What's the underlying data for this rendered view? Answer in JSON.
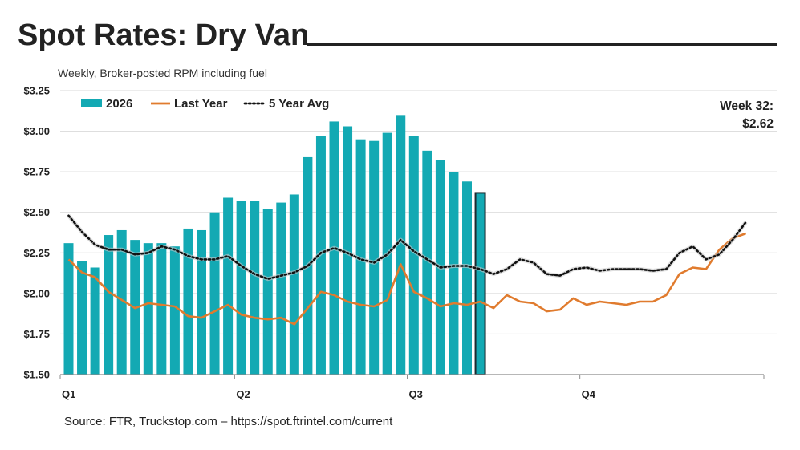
{
  "header": {
    "title": "Spot Rates: Dry Van",
    "subtitle": "Weekly, Broker-posted RPM including fuel"
  },
  "callout": {
    "line1": "Week 32:",
    "line2": "$2.62"
  },
  "footer": {
    "source": "Source: FTR, Truckstop.com – https://spot.ftrintel.com/current"
  },
  "colors": {
    "bar": "#13A9B3",
    "bar_highlight_border": "#1a2a30",
    "last_year": "#E07B2E",
    "five_year_avg": "#111111",
    "grid": "#d9d9d9"
  },
  "chart_data": {
    "type": "bar",
    "ylim": [
      1.5,
      3.25
    ],
    "yticks": [
      1.5,
      1.75,
      2.0,
      2.25,
      2.5,
      2.75,
      3.0,
      3.25
    ],
    "ytick_labels": [
      "$1.50",
      "$1.75",
      "$2.00",
      "$2.25",
      "$2.50",
      "$2.75",
      "$3.00",
      "$3.25"
    ],
    "xlim": [
      1,
      53
    ],
    "quarter_labels": [
      {
        "label": "Q1",
        "week": 1
      },
      {
        "label": "Q2",
        "week": 14
      },
      {
        "label": "Q3",
        "week": 27
      },
      {
        "label": "Q4",
        "week": 40
      }
    ],
    "legend": [
      "2026",
      "Last Year",
      "5 Year Avg"
    ],
    "series": [
      {
        "name": "2026",
        "type": "bar",
        "weeks": [
          1,
          2,
          3,
          4,
          5,
          6,
          7,
          8,
          9,
          10,
          11,
          12,
          13,
          14,
          15,
          16,
          17,
          18,
          19,
          20,
          21,
          22,
          23,
          24,
          25,
          26,
          27,
          28,
          29,
          30,
          31,
          32
        ],
        "values": [
          2.31,
          2.2,
          2.16,
          2.36,
          2.39,
          2.33,
          2.31,
          2.31,
          2.29,
          2.4,
          2.39,
          2.5,
          2.59,
          2.57,
          2.57,
          2.52,
          2.56,
          2.61,
          2.84,
          2.97,
          3.06,
          3.03,
          2.95,
          2.94,
          2.99,
          3.1,
          2.97,
          2.88,
          2.82,
          2.75,
          2.69,
          2.62
        ],
        "highlight_week": 32
      },
      {
        "name": "Last Year",
        "type": "line",
        "weeks": [
          1,
          2,
          3,
          4,
          5,
          6,
          7,
          8,
          9,
          10,
          11,
          12,
          13,
          14,
          15,
          16,
          17,
          18,
          19,
          20,
          21,
          22,
          23,
          24,
          25,
          26,
          27,
          28,
          29,
          30,
          31,
          32,
          33,
          34,
          35,
          36,
          37,
          38,
          39,
          40,
          41,
          42,
          43,
          44,
          45,
          46,
          47,
          48,
          49,
          50,
          51,
          52
        ],
        "values": [
          2.21,
          2.13,
          2.1,
          2.01,
          1.96,
          1.91,
          1.94,
          1.93,
          1.92,
          1.86,
          1.85,
          1.89,
          1.93,
          1.87,
          1.85,
          1.84,
          1.85,
          1.81,
          1.91,
          2.01,
          1.99,
          1.95,
          1.93,
          1.92,
          1.96,
          2.18,
          2.01,
          1.97,
          1.92,
          1.94,
          1.93,
          1.95,
          1.91,
          1.99,
          1.95,
          1.94,
          1.89,
          1.9,
          1.97,
          1.93,
          1.95,
          1.94,
          1.93,
          1.95,
          1.95,
          1.99,
          2.12,
          2.16,
          2.15,
          2.27,
          2.34,
          2.37
        ]
      },
      {
        "name": "5 Year Avg",
        "type": "line",
        "style": "dotted",
        "weeks": [
          1,
          2,
          3,
          4,
          5,
          6,
          7,
          8,
          9,
          10,
          11,
          12,
          13,
          14,
          15,
          16,
          17,
          18,
          19,
          20,
          21,
          22,
          23,
          24,
          25,
          26,
          27,
          28,
          29,
          30,
          31,
          32,
          33,
          34,
          35,
          36,
          37,
          38,
          39,
          40,
          41,
          42,
          43,
          44,
          45,
          46,
          47,
          48,
          49,
          50,
          51,
          52
        ],
        "values": [
          2.48,
          2.38,
          2.3,
          2.27,
          2.27,
          2.24,
          2.25,
          2.29,
          2.27,
          2.23,
          2.21,
          2.21,
          2.23,
          2.17,
          2.12,
          2.09,
          2.11,
          2.13,
          2.17,
          2.25,
          2.28,
          2.25,
          2.21,
          2.19,
          2.24,
          2.33,
          2.26,
          2.21,
          2.16,
          2.17,
          2.17,
          2.15,
          2.12,
          2.15,
          2.21,
          2.19,
          2.12,
          2.11,
          2.15,
          2.16,
          2.14,
          2.15,
          2.15,
          2.15,
          2.14,
          2.15,
          2.25,
          2.29,
          2.21,
          2.24,
          2.33,
          2.44
        ]
      }
    ]
  }
}
